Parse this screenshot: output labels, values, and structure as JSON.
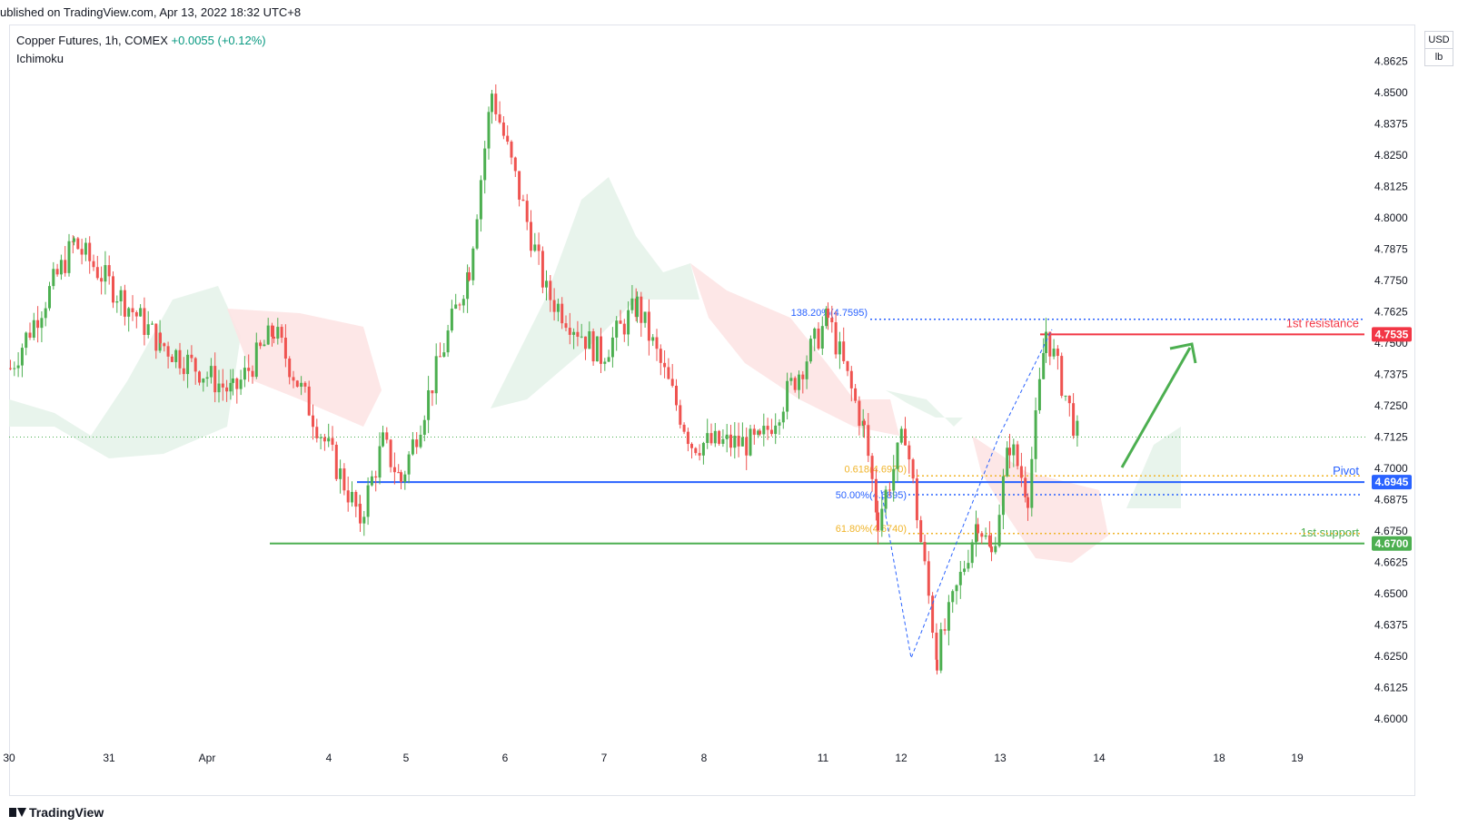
{
  "header": {
    "published": "ublished on TradingView.com, Apr 13, 2022 18:32 UTC+8",
    "symbol_line": "Copper Futures, 1h, COMEX",
    "change": "+0.0055 (+0.12%)",
    "indicator": "Ichimoku"
  },
  "unit": {
    "currency": "USD",
    "unit": "lb"
  },
  "footer": {
    "brand": "TradingView"
  },
  "colors": {
    "bull": "#4caf50",
    "bear": "#ef5350",
    "resistance": "#f23645",
    "pivot": "#2962ff",
    "support": "#4caf50",
    "fib_orange": "#f0b429",
    "fib_blue": "#2962ff",
    "cloud_green": "#e6f3ea",
    "cloud_red": "#fde4e4",
    "arrow": "#4caf50",
    "last_price": "#4caf50"
  },
  "chart_data": {
    "type": "candlestick",
    "title": "",
    "ylim": [
      4.5875,
      4.875
    ],
    "y_ticks": [
      "4.6000",
      "4.6125",
      "4.6250",
      "4.6375",
      "4.6500",
      "4.6625",
      "4.6750",
      "4.6875",
      "4.7000",
      "4.7125",
      "4.7250",
      "4.7375",
      "4.7500",
      "4.7625",
      "4.7750",
      "4.7875",
      "4.8000",
      "4.8125",
      "4.8250",
      "4.8375",
      "4.8500",
      "4.8625",
      "4.8750"
    ],
    "x_ticks": [
      "30",
      "31",
      "Apr",
      "4",
      "5",
      "6",
      "7",
      "8",
      "11",
      "12",
      "13",
      "14",
      "18",
      "19"
    ],
    "levels": [
      {
        "label": "1st resistance",
        "price": "4.7535",
        "value": 4.7535
      },
      {
        "label": "Pivot",
        "price": "4.6945",
        "value": 4.6945
      },
      {
        "label": "1st support",
        "price": "4.6700",
        "value": 4.67
      }
    ],
    "fib_labels": [
      {
        "text": "138.20%(4.7595)",
        "value": 4.7595
      },
      {
        "text": "0.618(4.6970)",
        "value": 4.697
      },
      {
        "text": "50.00%(4.6895)",
        "value": 4.6895
      },
      {
        "text": "61.80%(4.6740)",
        "value": 4.674
      }
    ],
    "last_price": 4.7125,
    "swing_path": [
      [
        "Mar 30",
        4.74
      ],
      [
        "Mar 30 12h",
        4.79
      ],
      [
        "Mar 31",
        4.75
      ],
      [
        "Apr 1",
        4.73
      ],
      [
        "Apr 1 12h",
        4.755
      ],
      [
        "Apr 1 20h",
        4.68
      ],
      [
        "Apr 4",
        4.71
      ],
      [
        "Apr 4 12h",
        4.695
      ],
      [
        "Apr 5",
        4.78
      ],
      [
        "Apr 5 12h",
        4.85
      ],
      [
        "Apr 6",
        4.77
      ],
      [
        "Apr 6 16h",
        4.745
      ],
      [
        "Apr 7",
        4.765
      ],
      [
        "Apr 7 12h",
        4.71
      ],
      [
        "Apr 8",
        4.71
      ],
      [
        "Apr 8 16h",
        4.76
      ],
      [
        "Apr 11",
        4.715
      ],
      [
        "Apr 11 12h",
        4.68
      ],
      [
        "Apr 11 18h",
        4.715
      ],
      [
        "Apr 12",
        4.625
      ],
      [
        "Apr 12 12h",
        4.68
      ],
      [
        "Apr 13",
        4.665
      ],
      [
        "Apr 13 04h",
        4.71
      ],
      [
        "Apr 13 08h",
        4.69
      ],
      [
        "Apr 13 14h",
        4.755
      ],
      [
        "Apr 13 18h",
        4.7125
      ]
    ]
  }
}
